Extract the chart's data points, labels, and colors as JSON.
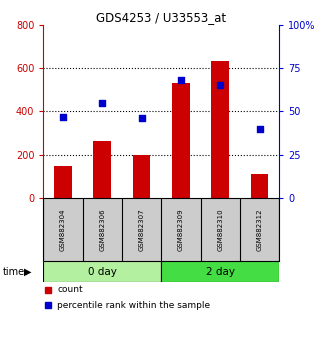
{
  "title": "GDS4253 / U33553_at",
  "samples": [
    "GSM882304",
    "GSM882306",
    "GSM882307",
    "GSM882309",
    "GSM882310",
    "GSM882312"
  ],
  "counts": [
    150,
    265,
    200,
    530,
    635,
    110
  ],
  "percentiles": [
    47,
    55,
    46,
    68,
    65,
    40
  ],
  "groups": [
    {
      "label": "0 day",
      "indices": [
        0,
        1,
        2
      ],
      "color": "#b3f0a0"
    },
    {
      "label": "2 day",
      "indices": [
        3,
        4,
        5
      ],
      "color": "#44dd44"
    }
  ],
  "bar_color": "#cc0000",
  "scatter_color": "#0000cc",
  "left_ylim": [
    0,
    800
  ],
  "right_ylim": [
    0,
    100
  ],
  "left_yticks": [
    0,
    200,
    400,
    600,
    800
  ],
  "right_yticks": [
    0,
    25,
    50,
    75,
    100
  ],
  "right_yticklabels": [
    "0",
    "25",
    "50",
    "75",
    "100%"
  ],
  "bg_color": "#ffffff",
  "sample_box_color": "#cccccc",
  "left_tick_color": "#cc0000",
  "right_tick_color": "#0000cc"
}
